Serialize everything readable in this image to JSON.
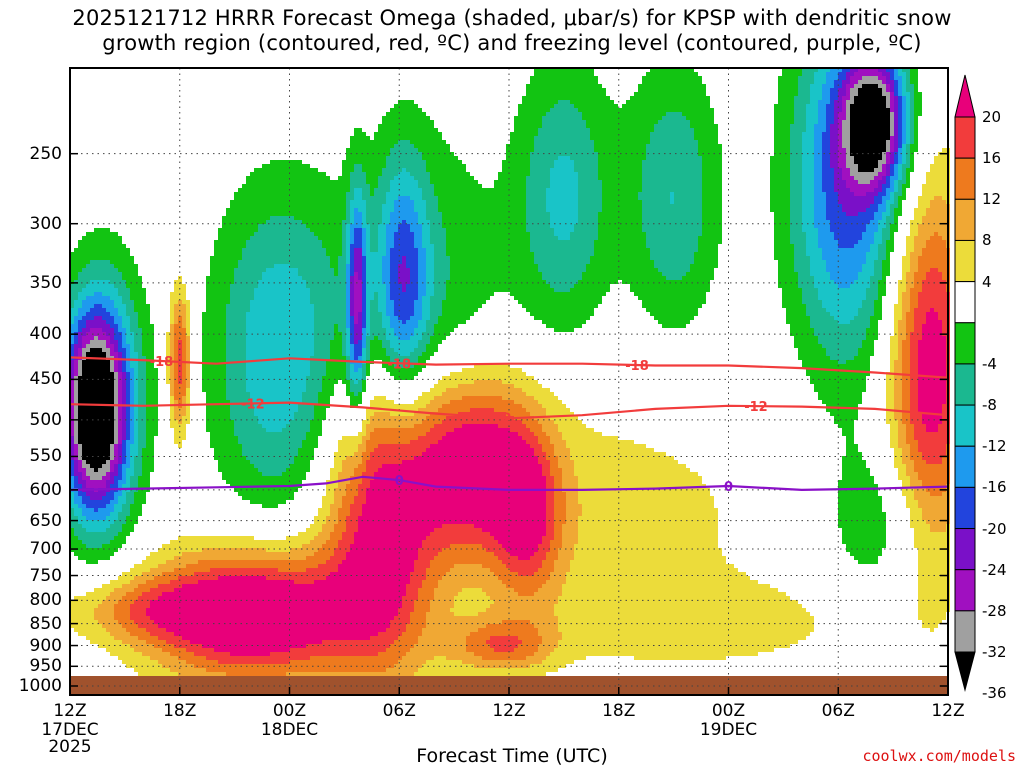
{
  "title_line1": "2025121712 HRRR Forecast Omega (shaded, μbar/s) for KPSP with dendritic snow",
  "title_line2": "growth region (contoured, red, ºC) and freezing level (contoured, purple, ºC)",
  "xlabel": "Forecast Time (UTC)",
  "credit": "coolwx.com/models",
  "chart_data": {
    "type": "heatmap",
    "title": "2025121712 HRRR Forecast Omega (shaded, μbar/s) for KPSP with dendritic snow growth region (contoured, red, ºC) and freezing level (contoured, purple, ºC)",
    "xlabel": "Forecast Time (UTC)",
    "ylabel": "",
    "x_unit": "hours since 2025-12-17 12Z",
    "xlim": [
      0,
      48
    ],
    "y_scale": "log-pressure (hPa), inverted",
    "ylim": [
      1000,
      200
    ],
    "x_ticks": [
      {
        "x": 0,
        "label": "12Z",
        "sub": "17DEC",
        "sub2": "2025"
      },
      {
        "x": 6,
        "label": "18Z",
        "sub": "",
        "sub2": ""
      },
      {
        "x": 12,
        "label": "00Z",
        "sub": "18DEC",
        "sub2": ""
      },
      {
        "x": 18,
        "label": "06Z",
        "sub": "",
        "sub2": ""
      },
      {
        "x": 24,
        "label": "12Z",
        "sub": "",
        "sub2": ""
      },
      {
        "x": 30,
        "label": "18Z",
        "sub": "",
        "sub2": ""
      },
      {
        "x": 36,
        "label": "00Z",
        "sub": "19DEC",
        "sub2": ""
      },
      {
        "x": 42,
        "label": "06Z",
        "sub": "",
        "sub2": ""
      },
      {
        "x": 48,
        "label": "12Z",
        "sub": "",
        "sub2": ""
      }
    ],
    "y_ticks": [
      250,
      300,
      350,
      400,
      450,
      500,
      550,
      600,
      650,
      700,
      750,
      800,
      850,
      900,
      950,
      1000
    ],
    "grid": true,
    "colorbar": {
      "labels": [
        "20",
        "16",
        "12",
        "8",
        "4",
        "-4",
        "-8",
        "-12",
        "-16",
        "-20",
        "-24",
        "-28",
        "-32",
        "-36"
      ],
      "bins": [
        {
          "lo": 20,
          "hi": null,
          "color": "#e8007a"
        },
        {
          "lo": 16,
          "hi": 20,
          "color": "#f23c3c"
        },
        {
          "lo": 12,
          "hi": 16,
          "color": "#ee7a1e"
        },
        {
          "lo": 8,
          "hi": 12,
          "color": "#f0a834"
        },
        {
          "lo": 4,
          "hi": 8,
          "color": "#ecdc3a"
        },
        {
          "lo": -4,
          "hi": 4,
          "color": "#ffffff"
        },
        {
          "lo": -8,
          "hi": -4,
          "color": "#12c412"
        },
        {
          "lo": -12,
          "hi": -8,
          "color": "#1bb890"
        },
        {
          "lo": -16,
          "hi": -12,
          "color": "#19c4c8"
        },
        {
          "lo": -20,
          "hi": -16,
          "color": "#1e9aee"
        },
        {
          "lo": -24,
          "hi": -20,
          "color": "#2244dd"
        },
        {
          "lo": -28,
          "hi": -24,
          "color": "#7a10c8"
        },
        {
          "lo": -32,
          "hi": -28,
          "color": "#a010c0"
        },
        {
          "lo": -36,
          "hi": -32,
          "color": "#a0a0a0"
        },
        {
          "lo": null,
          "hi": -36,
          "color": "#000000"
        }
      ]
    },
    "terrain_color": "#a0522d",
    "omega_features": [
      {
        "x": 1.3,
        "p": 490,
        "dx": 1.2,
        "dp_log": 0.18,
        "amp": -38
      },
      {
        "x": 2.0,
        "p": 470,
        "dx": 1.6,
        "dp_log": 0.25,
        "amp": -14
      },
      {
        "x": 6.0,
        "p": 430,
        "dx": 0.45,
        "dp_log": 0.14,
        "amp": 20
      },
      {
        "x": 11.5,
        "p": 420,
        "dx": 2.6,
        "dp_log": 0.3,
        "amp": -16
      },
      {
        "x": 15.7,
        "p": 370,
        "dx": 0.4,
        "dp_log": 0.2,
        "amp": -24
      },
      {
        "x": 18.2,
        "p": 350,
        "dx": 1.0,
        "dp_log": 0.22,
        "amp": -18
      },
      {
        "x": 19.5,
        "p": 380,
        "dx": 3.0,
        "dp_log": 0.35,
        "amp": -9
      },
      {
        "x": 27.0,
        "p": 280,
        "dx": 1.8,
        "dp_log": 0.25,
        "amp": -13
      },
      {
        "x": 33.0,
        "p": 280,
        "dx": 1.8,
        "dp_log": 0.25,
        "amp": -12
      },
      {
        "x": 42.5,
        "p": 270,
        "dx": 2.2,
        "dp_log": 0.33,
        "amp": -23
      },
      {
        "x": 44.0,
        "p": 230,
        "dx": 1.2,
        "dp_log": 0.12,
        "amp": -32
      },
      {
        "x": 44.5,
        "p": 650,
        "dx": 2.2,
        "dp_log": 0.15,
        "amp": -8
      },
      {
        "x": 47.0,
        "p": 440,
        "dx": 1.6,
        "dp_log": 0.35,
        "amp": 24
      },
      {
        "x": 10.0,
        "p": 830,
        "dx": 4.0,
        "dp_log": 0.12,
        "amp": 30
      },
      {
        "x": 17.0,
        "p": 650,
        "dx": 2.2,
        "dp_log": 0.28,
        "amp": 24
      },
      {
        "x": 22.0,
        "p": 560,
        "dx": 2.5,
        "dp_log": 0.17,
        "amp": 26
      },
      {
        "x": 25.0,
        "p": 650,
        "dx": 1.3,
        "dp_log": 0.15,
        "amp": 15
      },
      {
        "x": 23.5,
        "p": 900,
        "dx": 2.0,
        "dp_log": 0.05,
        "amp": 14
      },
      {
        "x": 30.0,
        "p": 650,
        "dx": 6.0,
        "dp_log": 0.25,
        "amp": 6
      },
      {
        "x": 36.0,
        "p": 850,
        "dx": 6.0,
        "dp_log": 0.08,
        "amp": 5
      },
      {
        "x": 4.0,
        "p": 820,
        "dx": 3.0,
        "dp_log": 0.06,
        "amp": 10
      }
    ],
    "contours": [
      {
        "name": "-18",
        "color": "#f23c3c",
        "label": "-18",
        "x": [
          0,
          4,
          8,
          12,
          16,
          20,
          24,
          28,
          32,
          36,
          40,
          44,
          48
        ],
        "p": [
          425,
          428,
          432,
          426,
          430,
          433,
          432,
          432,
          434,
          434,
          437,
          442,
          448
        ],
        "label_x": [
          5.0,
          18.0,
          31.0
        ]
      },
      {
        "name": "-12",
        "color": "#f23c3c",
        "label": "-12",
        "x": [
          0,
          4,
          8,
          12,
          16,
          20,
          24,
          28,
          32,
          36,
          40,
          44,
          48
        ],
        "p": [
          480,
          482,
          480,
          478,
          484,
          492,
          498,
          494,
          486,
          482,
          483,
          486,
          494
        ],
        "label_x": [
          10.0,
          23.5,
          37.5
        ]
      },
      {
        "name": "0",
        "color": "#8a10c8",
        "label": "0",
        "x": [
          0,
          4,
          8,
          12,
          14,
          16,
          18,
          20,
          24,
          28,
          32,
          36,
          40,
          44,
          48
        ],
        "p": [
          600,
          598,
          596,
          594,
          590,
          580,
          585,
          595,
          600,
          600,
          598,
          594,
          600,
          598,
          595
        ],
        "label_x": [
          18.0,
          36.0
        ]
      }
    ]
  }
}
